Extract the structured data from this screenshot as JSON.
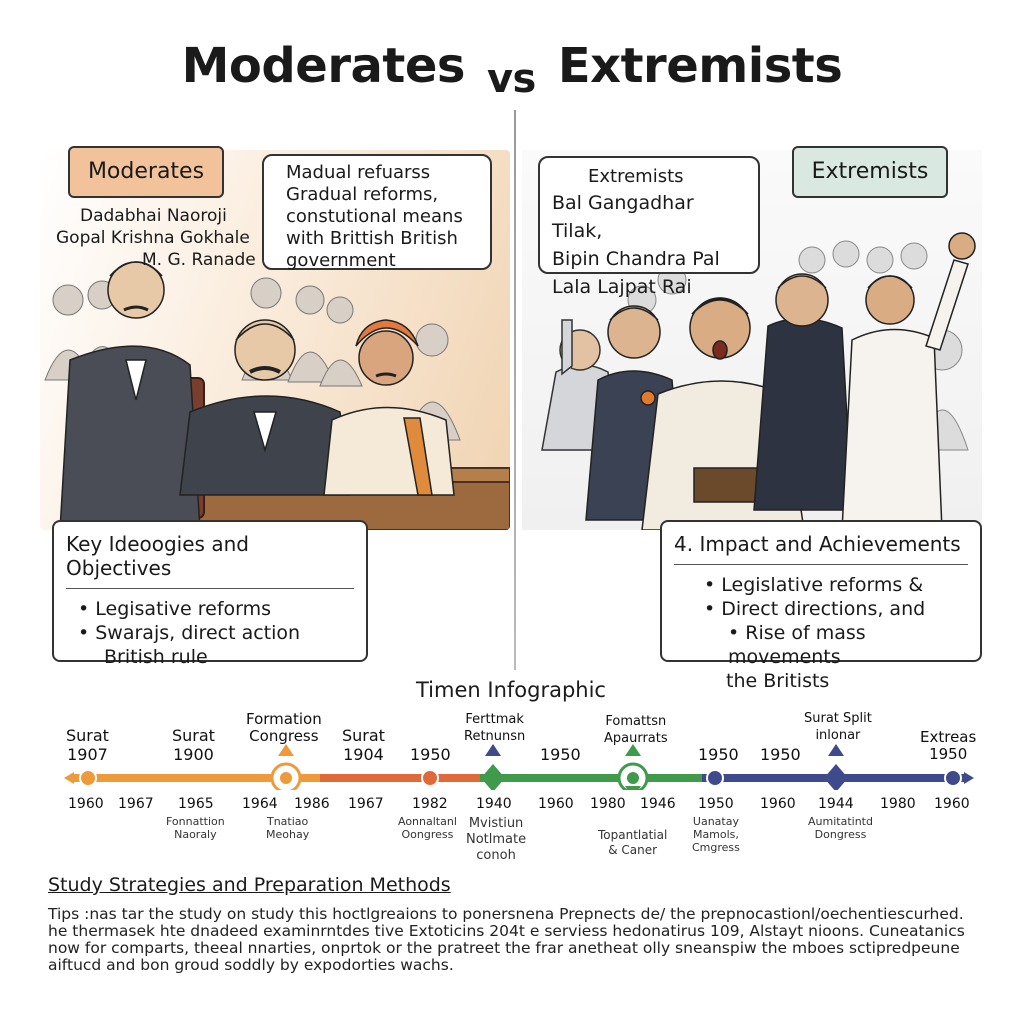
{
  "title": {
    "left": "Moderates",
    "vs": "vs",
    "right": "Extremists"
  },
  "moderates": {
    "tag": "Moderates",
    "leaders": [
      "Dadabhai Naoroji",
      "Gopal Krishna Gokhale",
      "M. G. Ranade"
    ],
    "speech": [
      "Madual refuarss",
      "Gradual reforms,",
      "constutional means",
      "with Brittish British",
      "government"
    ],
    "box_title": "Key Ideoogies and Objectives",
    "box_items": [
      "Legisative reforms",
      "Swarajs, direct action",
      "British rule"
    ]
  },
  "extremists": {
    "tag": "Extremists",
    "speech_title": "Extremists",
    "leaders": [
      "Bal Gangadhar Tilak,",
      "Bipin Chandra Pal",
      "Lala Lajpat Rai"
    ],
    "box_title": "4. Impact and Achievements",
    "box_items": [
      "Legislative reforms &",
      "Direct directions, and",
      "Rise of mass movements",
      "the Britists"
    ]
  },
  "timeline": {
    "title": "Timen Infographic",
    "top_labels": [
      {
        "text": [
          "Surat",
          "1907"
        ]
      },
      {
        "text": [
          "Surat",
          "1900"
        ]
      },
      {
        "text": [
          "Formation",
          "Congress"
        ]
      },
      {
        "text": [
          "Surat",
          "1904"
        ]
      },
      {
        "text": [
          "1950"
        ]
      },
      {
        "text": [
          "Ferttmak",
          "Retnunsn"
        ]
      },
      {
        "text": [
          "1950"
        ]
      },
      {
        "text": [
          "Fomattsn",
          "Apaurrats"
        ]
      },
      {
        "text": [
          "1950"
        ]
      },
      {
        "text": [
          "1950"
        ]
      },
      {
        "text": [
          "Surat Split",
          "inlonar"
        ]
      },
      {
        "text": [
          "Extreas",
          "1950"
        ]
      }
    ],
    "years": [
      "1960",
      "1967",
      "1965",
      "1964",
      "1986",
      "1967",
      "1982",
      "1940",
      "1960",
      "1980",
      "1946",
      "1950",
      "1960",
      "1944",
      "1980",
      "1960"
    ],
    "sub_labels": [
      {
        "text": [
          "Fonnattion",
          "Naoraly"
        ]
      },
      {
        "text": [
          "Tnatiao",
          "Meohay"
        ]
      },
      {
        "text": [
          "Aonnaltanl",
          "Oongress"
        ]
      },
      {
        "text": [
          "Mvistiun",
          "Notlmate",
          "conoh"
        ]
      },
      {
        "text": [
          "Topantlatial",
          "& Caner"
        ]
      },
      {
        "text": [
          "Uanatay",
          "Mamols,",
          "Cmgress"
        ]
      },
      {
        "text": [
          "Aumitatintd",
          "Dongress"
        ]
      }
    ],
    "colors": {
      "orange": "#ee9a3a",
      "red_orange": "#e0693a",
      "green": "#3f9a4c",
      "navy": "#3f4a8c"
    }
  },
  "study": {
    "title": "Study Strategies and Preparation Methods",
    "body": "Tips :nas tar the study on study this hoctlgreaions to ponersnena Prepnects de/ the prepnocastionl/oechentiescurhed. he thermasek hte dnadeed examinrntdes tive Extoticins 204t e serviess hedonatirus 109, Alstayt nioons. Cuneatanics now for comparts, theeal nnarties, onprtok or the pratreet the frar anetheat olly sneanspiw the mboes sctipredpeune aiftucd and bon groud soddly by expodorties wachs."
  }
}
